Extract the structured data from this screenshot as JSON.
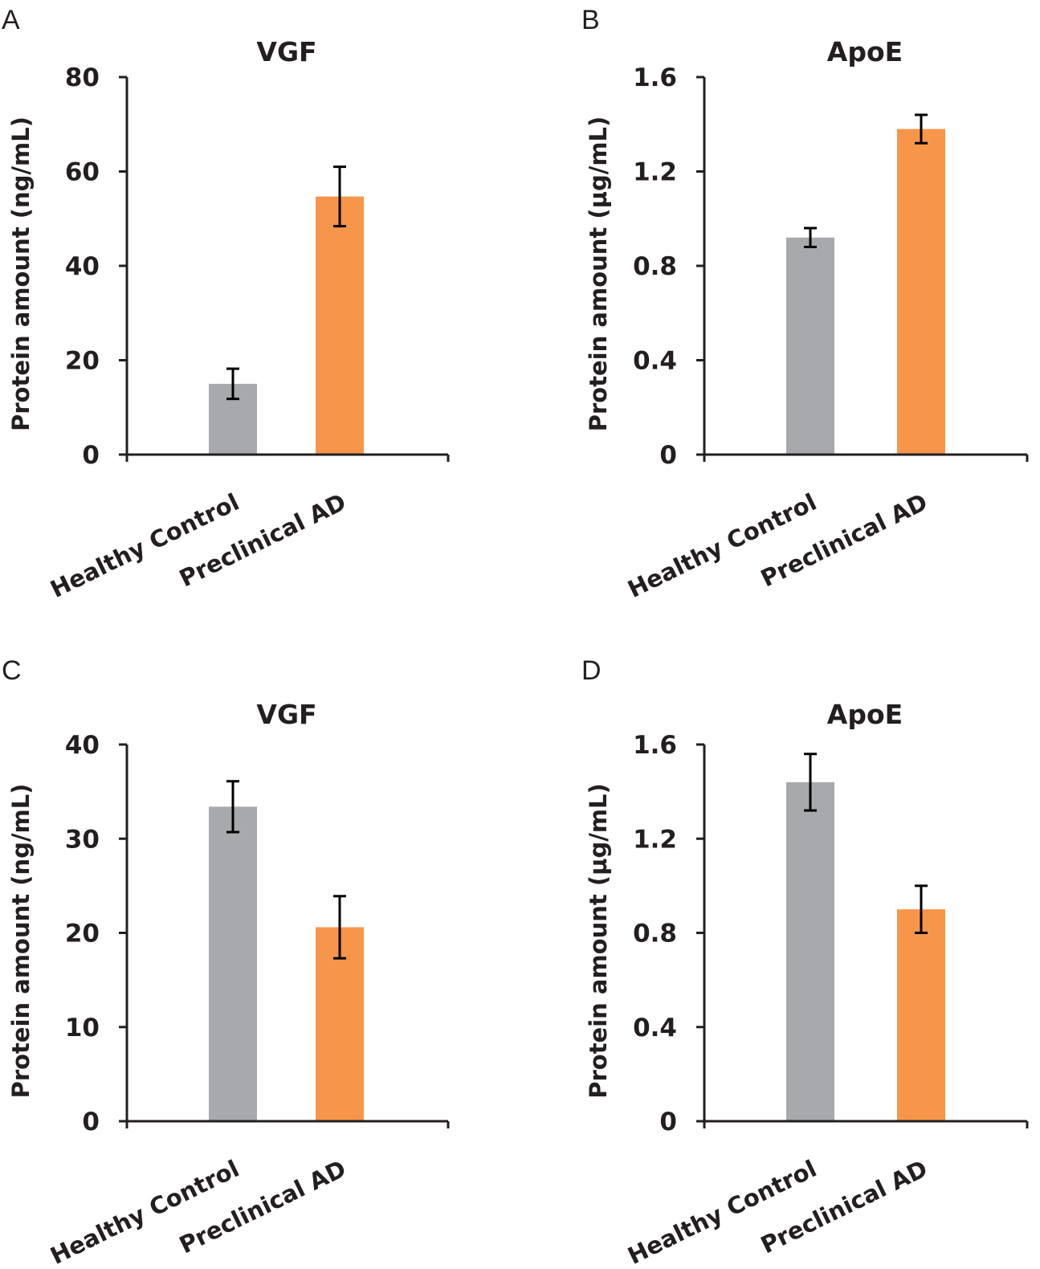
{
  "colors": {
    "control": "#a7a9ac",
    "preclinical": "#f7964a",
    "axis": "#231f20"
  },
  "chart_data": [
    {
      "panel": "A",
      "type": "bar",
      "title": "VGF",
      "ylabel": "Protein amount (ng/mL)",
      "xlabel": "",
      "categories": [
        "Healthy Control",
        "Preclinical AD"
      ],
      "values": [
        15,
        54.7
      ],
      "errors": [
        3.2,
        6.3
      ],
      "ylim": [
        0,
        80
      ],
      "yticks": [
        0,
        20,
        40,
        60,
        80
      ],
      "ytick_labels": [
        "0",
        "20",
        "40",
        "60",
        "80"
      ]
    },
    {
      "panel": "B",
      "type": "bar",
      "title": "ApoE",
      "ylabel": "Protein amount (µg/mL)",
      "xlabel": "",
      "categories": [
        "Healthy Control",
        "Preclinical AD"
      ],
      "values": [
        0.92,
        1.38
      ],
      "errors": [
        0.04,
        0.06
      ],
      "ylim": [
        0,
        1.6
      ],
      "yticks": [
        0,
        0.4,
        0.8,
        1.2,
        1.6
      ],
      "ytick_labels": [
        "0",
        "0.4",
        "0.8",
        "1.2",
        "1.6"
      ]
    },
    {
      "panel": "C",
      "type": "bar",
      "title": "VGF",
      "ylabel": "Protein amount (ng/mL)",
      "xlabel": "",
      "categories": [
        "Healthy Control",
        "Preclinical AD"
      ],
      "values": [
        33.4,
        20.6
      ],
      "errors": [
        2.7,
        3.3
      ],
      "ylim": [
        0,
        40
      ],
      "yticks": [
        0,
        10,
        20,
        30,
        40
      ],
      "ytick_labels": [
        "0",
        "10",
        "20",
        "30",
        "40"
      ]
    },
    {
      "panel": "D",
      "type": "bar",
      "title": "ApoE",
      "ylabel": "Protein amount (µg/mL)",
      "xlabel": "",
      "categories": [
        "Healthy Control",
        "Preclinical AD"
      ],
      "values": [
        1.44,
        0.9
      ],
      "errors": [
        0.12,
        0.1
      ],
      "ylim": [
        0,
        1.6
      ],
      "yticks": [
        0,
        0.4,
        0.8,
        1.2,
        1.6
      ],
      "ytick_labels": [
        "0",
        "0.4",
        "0.8",
        "1.2",
        "1.6"
      ]
    }
  ]
}
